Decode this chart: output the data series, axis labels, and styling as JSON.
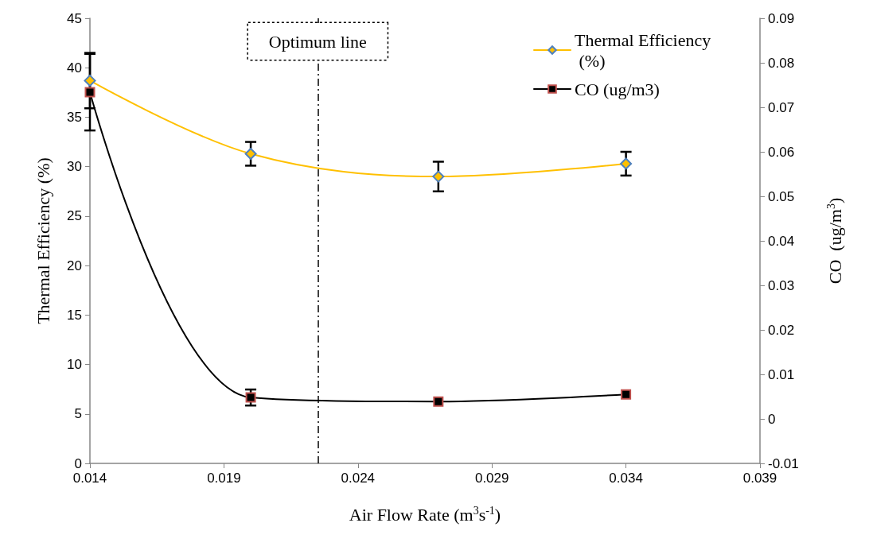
{
  "chart_data": {
    "type": "line",
    "xlabel": "Air Flow Rate (m$^{3}$s$^{-1}$)",
    "ylabel": "Thermal Efficiency (%)",
    "y2label": "CO  (ug/m$^{3}$)",
    "x": [
      0.014,
      0.02,
      0.027,
      0.034
    ],
    "series": [
      {
        "name": "Thermal Efficiency (%)",
        "color": "#ffc000",
        "marker": "diamond",
        "values": [
          38.7,
          31.3,
          29.0,
          30.3
        ],
        "errors": [
          2.8,
          1.2,
          1.5,
          1.2
        ]
      },
      {
        "name": "CO (ug/m3)",
        "color": "#000000",
        "marker": "square",
        "axis": "y2",
        "values": [
          0.0734,
          0.0048,
          0.0039,
          0.0055
        ],
        "errors": [
          0.0086,
          0.0018,
          null,
          null
        ]
      }
    ],
    "xlim": [
      0.014,
      0.039
    ],
    "xticks": [
      0.014,
      0.019,
      0.024,
      0.029,
      0.034,
      0.039
    ],
    "ylim": [
      0,
      45
    ],
    "yticks": [
      0,
      5,
      10,
      15,
      20,
      25,
      30,
      35,
      40,
      45
    ],
    "y2lim": [
      -0.01,
      0.09
    ],
    "y2ticks": [
      -0.01,
      0,
      0.01,
      0.02,
      0.03,
      0.04,
      0.05,
      0.06,
      0.07,
      0.08,
      0.09
    ],
    "ref_lines": [
      {
        "axis": "x",
        "value": 0.0225,
        "label": "Optimum line",
        "color": "#000000",
        "line_style": "dashdot"
      }
    ],
    "grid": false,
    "legend": "top right"
  }
}
